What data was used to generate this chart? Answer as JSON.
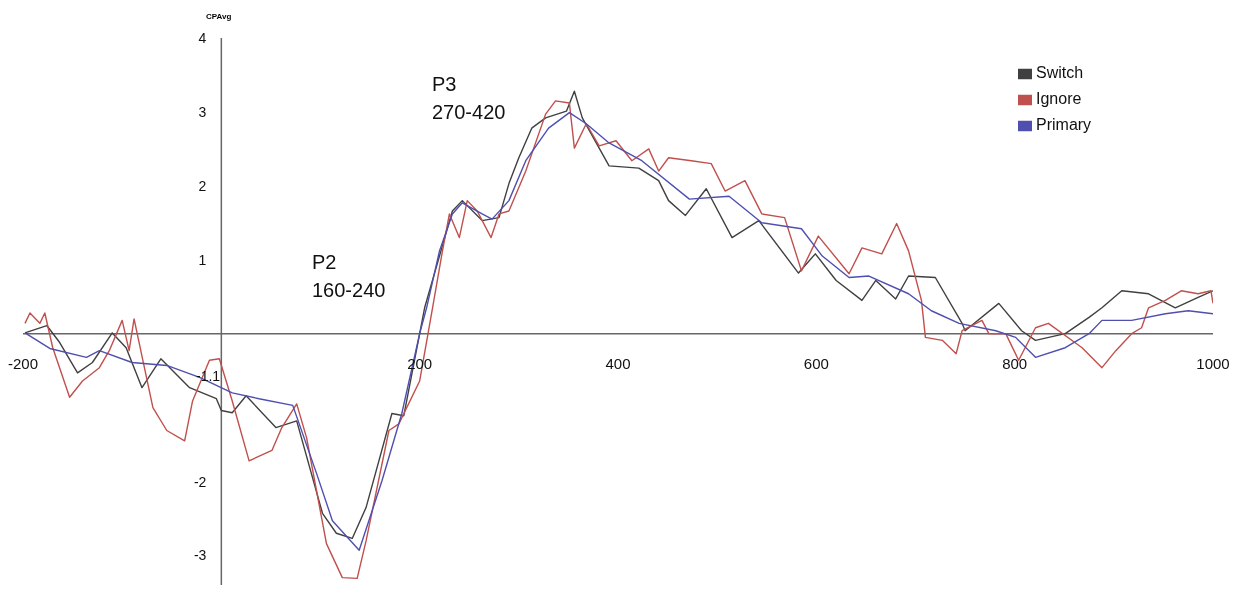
{
  "chart_data": {
    "type": "line",
    "ylabel": "CPAvg",
    "xlim": [
      -200,
      1000
    ],
    "ylim": [
      -3.4,
      4
    ],
    "xticks": [
      -200,
      200,
      400,
      600,
      800,
      1000
    ],
    "yticks": [
      -3,
      -2,
      1,
      2,
      3,
      4
    ],
    "grid": false,
    "legend": "top right",
    "marker": "none",
    "line_style": "solid",
    "annotations": [
      "P2\n160-240",
      "P3\n270-420",
      "-1.1"
    ],
    "series": [
      {
        "name": "Switch",
        "color": "#404040",
        "x": [
          -198,
          -176,
          -163,
          -145,
          -130,
          -110,
          -96,
          -80,
          -61,
          -32,
          -5,
          0,
          11,
          25,
          55,
          76,
          102,
          116,
          132,
          146,
          172,
          184,
          200,
          205,
          233,
          243,
          263,
          280,
          290,
          300,
          313,
          327,
          348,
          356,
          364,
          391,
          421,
          441,
          451,
          468,
          489,
          515,
          542,
          582,
          599,
          620,
          646,
          660,
          680,
          693,
          720,
          747,
          750,
          784,
          807,
          821,
          851,
          875,
          888,
          908,
          935,
          962,
          985,
          1000
        ],
        "values": [
          0.01,
          0.11,
          -0.12,
          -0.53,
          -0.39,
          0.01,
          -0.19,
          -0.73,
          -0.34,
          -0.73,
          -0.88,
          -1.04,
          -1.07,
          -0.84,
          -1.27,
          -1.18,
          -2.43,
          -2.7,
          -2.77,
          -2.35,
          -1.08,
          -1.11,
          0,
          0.35,
          1.66,
          1.8,
          1.53,
          1.57,
          2.03,
          2.38,
          2.78,
          2.92,
          3.01,
          3.28,
          2.92,
          2.27,
          2.24,
          2.07,
          1.8,
          1.6,
          1.96,
          1.3,
          1.53,
          0.82,
          1.08,
          0.72,
          0.45,
          0.72,
          0.47,
          0.78,
          0.76,
          0.14,
          0.04,
          0.41,
          0.04,
          -0.09,
          0,
          0.22,
          0.35,
          0.58,
          0.54,
          0.35,
          0.49,
          0.58
        ]
      },
      {
        "name": "Ignore",
        "color": "#c0504d",
        "x": [
          -198,
          -193,
          -183,
          -178,
          -170,
          -153,
          -140,
          -123,
          -113,
          -100,
          -93,
          -88,
          -69,
          -55,
          -37,
          -29,
          -12,
          -2,
          11,
          28,
          51,
          61,
          76,
          86,
          106,
          122,
          137,
          146,
          169,
          179,
          200,
          213,
          223,
          230,
          240,
          248,
          258,
          272,
          280,
          290,
          307,
          327,
          337,
          351,
          356,
          368,
          381,
          398,
          414,
          431,
          441,
          451,
          474,
          494,
          508,
          528,
          545,
          568,
          585,
          602,
          633,
          646,
          666,
          681,
          693,
          706,
          710,
          727,
          741,
          747,
          767,
          774,
          791,
          804,
          821,
          834,
          868,
          888,
          902,
          918,
          928,
          935,
          952,
          968,
          985,
          998,
          1000
        ],
        "values": [
          0.14,
          0.28,
          0.14,
          0.28,
          -0.19,
          -0.86,
          -0.64,
          -0.46,
          -0.23,
          0.18,
          -0.23,
          0.2,
          -1.0,
          -1.31,
          -1.45,
          -0.91,
          -0.36,
          -0.34,
          -0.91,
          -1.72,
          -1.58,
          -1.27,
          -0.95,
          -1.41,
          -2.84,
          -3.3,
          -3.31,
          -2.8,
          -1.31,
          -1.22,
          -0.64,
          0.35,
          1.12,
          1.62,
          1.3,
          1.8,
          1.66,
          1.3,
          1.62,
          1.66,
          2.2,
          2.97,
          3.15,
          3.12,
          2.51,
          2.84,
          2.54,
          2.61,
          2.34,
          2.5,
          2.2,
          2.38,
          2.34,
          2.3,
          1.93,
          2.07,
          1.62,
          1.57,
          0.85,
          1.32,
          0.81,
          1.16,
          1.08,
          1.49,
          1.12,
          0.45,
          -0.05,
          -0.09,
          -0.27,
          0.04,
          0.18,
          0,
          0,
          -0.36,
          0.08,
          0.14,
          -0.19,
          -0.46,
          -0.23,
          0,
          0.08,
          0.35,
          0.45,
          0.58,
          0.54,
          0.58,
          0.41
        ]
      },
      {
        "name": "Primary",
        "color": "#4f4fb0",
        "x": [
          -198,
          -173,
          -136,
          -123,
          -90,
          -55,
          -22,
          11,
          38,
          72,
          96,
          112,
          139,
          162,
          182,
          200,
          207,
          220,
          233,
          243,
          263,
          273,
          290,
          307,
          330,
          351,
          368,
          391,
          424,
          472,
          512,
          545,
          585,
          606,
          633,
          653,
          693,
          716,
          744,
          781,
          801,
          821,
          851,
          875,
          888,
          918,
          952,
          975,
          1000
        ],
        "values": [
          0.01,
          -0.2,
          -0.32,
          -0.23,
          -0.39,
          -0.43,
          -0.59,
          -0.8,
          -0.88,
          -0.97,
          -1.89,
          -2.53,
          -2.93,
          -1.99,
          -1.08,
          0,
          0.35,
          1.12,
          1.62,
          1.77,
          1.62,
          1.55,
          1.8,
          2.34,
          2.78,
          2.99,
          2.84,
          2.58,
          2.34,
          1.82,
          1.86,
          1.5,
          1.42,
          1.05,
          0.76,
          0.78,
          0.54,
          0.31,
          0.14,
          0.04,
          -0.05,
          -0.32,
          -0.19,
          0,
          0.18,
          0.18,
          0.27,
          0.31,
          0.27
        ]
      }
    ]
  }
}
